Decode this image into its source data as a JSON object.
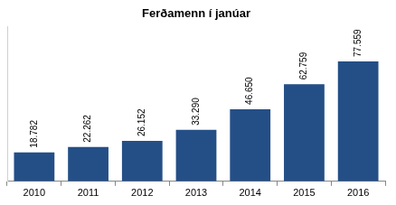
{
  "chart_data": {
    "type": "bar",
    "title": "Ferðamenn í janúar",
    "categories": [
      "2010",
      "2011",
      "2012",
      "2013",
      "2014",
      "2015",
      "2016"
    ],
    "values": [
      18782,
      22262,
      26152,
      33290,
      46650,
      62759,
      77559
    ],
    "value_labels": [
      "18.782",
      "22.262",
      "26.152",
      "33.290",
      "46.650",
      "62.759",
      "77.559"
    ],
    "color": "#244F86",
    "ylim": [
      0,
      100000
    ],
    "grid": false,
    "data_labels": true,
    "tick_labels": "x"
  }
}
